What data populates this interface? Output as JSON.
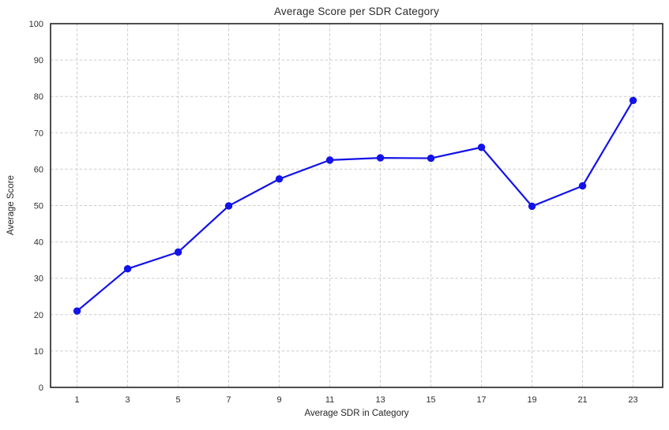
{
  "chart_data": {
    "type": "line",
    "title": "Average Score per SDR Category",
    "xlabel": "Average SDR in Category",
    "ylabel": "Average Score",
    "x": [
      1,
      3,
      5,
      7,
      9,
      11,
      13,
      15,
      17,
      19,
      21,
      23
    ],
    "y": [
      21.0,
      32.6,
      37.2,
      49.9,
      57.3,
      62.5,
      63.1,
      63.0,
      66.0,
      49.8,
      55.4,
      78.9
    ],
    "xtick_labels": [
      "1",
      "3",
      "5",
      "7",
      "9",
      "11",
      "13",
      "15",
      "17",
      "19",
      "21",
      "23"
    ],
    "ytick_labels": [
      "0",
      "10",
      "20",
      "30",
      "40",
      "50",
      "60",
      "70",
      "80",
      "90",
      "100"
    ],
    "yticks": [
      0,
      10,
      20,
      30,
      40,
      50,
      60,
      70,
      80,
      90,
      100
    ],
    "xlim": [
      -0.05,
      24.17
    ],
    "ylim": [
      0,
      100
    ],
    "grid": true,
    "grid_style": "dashed",
    "legend": "none",
    "line_color": "#1212ea",
    "marker": "circle",
    "grid_color": "#cccccc",
    "spine_color": "#222222",
    "text_color": "#2e2e2e"
  }
}
